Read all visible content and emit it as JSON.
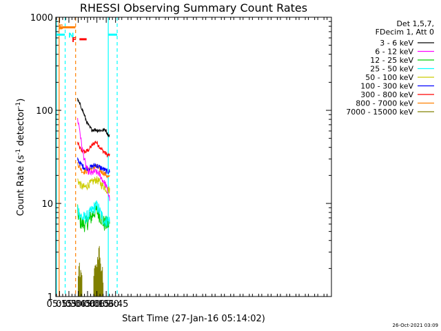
{
  "chart_data": {
    "type": "line",
    "title": "RHESSI Observing Summary Count Rates",
    "xlabel": "Start Time (27-Jan-16 05:14:02)",
    "ylabel": "Count Rate (s",
    "ylabel_sup1": "-1",
    "ylabel_mid": " detector",
    "ylabel_sup2": "-1",
    "ylabel_end": ")",
    "x_range_min": [
      309,
      752
    ],
    "y_log": true,
    "ylim": [
      1,
      1000
    ],
    "x_ticks": [
      {
        "v": 315,
        "label": "05:15"
      },
      {
        "v": 330,
        "label": "05:30"
      },
      {
        "v": 345,
        "label": "05:45"
      },
      {
        "v": 360,
        "label": "06:00"
      },
      {
        "v": 375,
        "label": "06:15"
      },
      {
        "v": 390,
        "label": "06:30"
      },
      {
        "v": 405,
        "label": "06:45"
      }
    ],
    "y_ticks": [
      {
        "v": 1,
        "label": "1"
      },
      {
        "v": 10,
        "label": "10"
      },
      {
        "v": 100,
        "label": "100"
      },
      {
        "v": 1000,
        "label": "1000"
      }
    ],
    "legend_header": [
      "Det 1,5,7,",
      "FDecim 1, Att 0"
    ],
    "series": [
      {
        "name": "3 - 6 keV",
        "color": "#000000",
        "points": [
          [
            344,
            130
          ],
          [
            347,
            118
          ],
          [
            351,
            105
          ],
          [
            355,
            88
          ],
          [
            359,
            74
          ],
          [
            363,
            66
          ],
          [
            367,
            62
          ],
          [
            372,
            62
          ],
          [
            378,
            61
          ],
          [
            384,
            61
          ],
          [
            389,
            62
          ],
          [
            392,
            56
          ],
          [
            394,
            54
          ],
          [
            396,
            53
          ]
        ]
      },
      {
        "name": "6 - 12 keV",
        "color": "#ff00ff",
        "points": [
          [
            344,
            80
          ],
          [
            347,
            65
          ],
          [
            350,
            45
          ],
          [
            353,
            34
          ],
          [
            357,
            26
          ],
          [
            361,
            22
          ],
          [
            366,
            21
          ],
          [
            372,
            22
          ],
          [
            378,
            21
          ],
          [
            384,
            18
          ],
          [
            389,
            16
          ],
          [
            393,
            13
          ],
          [
            396,
            11
          ]
        ]
      },
      {
        "name": "12 - 25 keV",
        "color": "#00cc00",
        "points": [
          [
            344,
            8
          ],
          [
            348,
            6.5
          ],
          [
            352,
            6
          ],
          [
            357,
            6
          ],
          [
            362,
            6.5
          ],
          [
            368,
            7.5
          ],
          [
            373,
            8.5
          ],
          [
            377,
            8
          ],
          [
            382,
            7
          ],
          [
            387,
            6
          ],
          [
            391,
            6
          ],
          [
            394,
            6
          ],
          [
            396,
            6
          ]
        ]
      },
      {
        "name": "25 - 50 keV",
        "color": "#00ffff",
        "points": [
          [
            344,
            9
          ],
          [
            348,
            7.5
          ],
          [
            352,
            7
          ],
          [
            357,
            7
          ],
          [
            362,
            7.5
          ],
          [
            368,
            8.5
          ],
          [
            373,
            9.5
          ],
          [
            377,
            9
          ],
          [
            382,
            7.5
          ],
          [
            387,
            6.5
          ],
          [
            391,
            6.5
          ],
          [
            394,
            6.5
          ],
          [
            396,
            6.5
          ]
        ]
      },
      {
        "name": "50 - 100 keV",
        "color": "#cccc00",
        "points": [
          [
            344,
            18
          ],
          [
            348,
            16
          ],
          [
            352,
            15
          ],
          [
            357,
            15
          ],
          [
            362,
            16
          ],
          [
            368,
            17
          ],
          [
            373,
            18
          ],
          [
            377,
            17.5
          ],
          [
            382,
            16
          ],
          [
            387,
            15
          ],
          [
            391,
            14
          ],
          [
            394,
            14
          ],
          [
            396,
            14
          ]
        ]
      },
      {
        "name": "100 - 300 keV",
        "color": "#0000ff",
        "points": [
          [
            344,
            30
          ],
          [
            348,
            27
          ],
          [
            352,
            25
          ],
          [
            357,
            24
          ],
          [
            362,
            24
          ],
          [
            368,
            25
          ],
          [
            373,
            26
          ],
          [
            377,
            25
          ],
          [
            382,
            24
          ],
          [
            387,
            23
          ],
          [
            391,
            22
          ],
          [
            394,
            22
          ],
          [
            396,
            22
          ]
        ]
      },
      {
        "name": "300 - 800 keV",
        "color": "#ff0000",
        "points": [
          [
            344,
            45
          ],
          [
            347,
            40
          ],
          [
            350,
            37
          ],
          [
            354,
            36
          ],
          [
            358,
            36
          ],
          [
            362,
            38
          ],
          [
            366,
            41
          ],
          [
            370,
            44
          ],
          [
            373,
            46
          ],
          [
            376,
            44
          ],
          [
            380,
            40
          ],
          [
            384,
            37
          ],
          [
            388,
            35
          ],
          [
            392,
            33
          ],
          [
            396,
            33
          ]
        ]
      },
      {
        "name": "800 - 7000 keV",
        "color": "#ff8000",
        "points": [
          [
            344,
            27
          ],
          [
            348,
            24
          ],
          [
            352,
            22
          ],
          [
            357,
            22
          ],
          [
            362,
            23
          ],
          [
            368,
            24
          ],
          [
            373,
            25
          ],
          [
            377,
            24
          ],
          [
            382,
            22
          ],
          [
            387,
            21
          ],
          [
            391,
            20
          ],
          [
            394,
            19
          ],
          [
            396,
            19
          ]
        ]
      },
      {
        "name": "7000 - 15000 keV",
        "color": "#808000",
        "points": []
      }
    ],
    "bursts_7000_15000": [
      {
        "x": 345,
        "y": 2.0
      },
      {
        "x": 346,
        "y": 1.6
      },
      {
        "x": 347,
        "y": 1.5
      },
      {
        "x": 370,
        "y": 2.0
      },
      {
        "x": 371,
        "y": 1.8
      },
      {
        "x": 372,
        "y": 2.0
      },
      {
        "x": 373,
        "y": 2.0
      },
      {
        "x": 374,
        "y": 2.2
      },
      {
        "x": 375,
        "y": 1.9
      },
      {
        "x": 376,
        "y": 3.0
      },
      {
        "x": 377,
        "y": 2.2
      },
      {
        "x": 378,
        "y": 2.0
      },
      {
        "x": 379,
        "y": 2.0
      },
      {
        "x": 380,
        "y": 1.8
      },
      {
        "x": 381,
        "y": 1.6
      }
    ],
    "flags": [
      {
        "label": "S",
        "color": "#ff8000",
        "x1": 314.6,
        "x2": 340.5,
        "y": 780
      },
      {
        "label": "N",
        "color": "#00ffff",
        "x1": 309,
        "x2": 323.5,
        "y": 650
      },
      {
        "label": "F",
        "color": "#ff0000",
        "x1": 347,
        "x2": 358.5,
        "y": 580
      },
      {
        "label": "",
        "color": "#00ffff",
        "x1": 393.4,
        "x2": 407.6,
        "y": 650
      }
    ],
    "markers": [
      {
        "x": 314.3,
        "color": "#ff8000",
        "dash": false
      },
      {
        "x": 310,
        "color": "#00ffff",
        "dash": false
      },
      {
        "x": 324,
        "color": "#00ffff",
        "dash": true
      },
      {
        "x": 340.8,
        "color": "#ff8000",
        "dash": true
      },
      {
        "x": 393.3,
        "color": "#00ffff",
        "dash": false
      },
      {
        "x": 407.6,
        "color": "#00ffff",
        "dash": true
      }
    ],
    "grid": false,
    "legend_position": "right"
  },
  "timestamp": "26-Oct-2021 03:09"
}
